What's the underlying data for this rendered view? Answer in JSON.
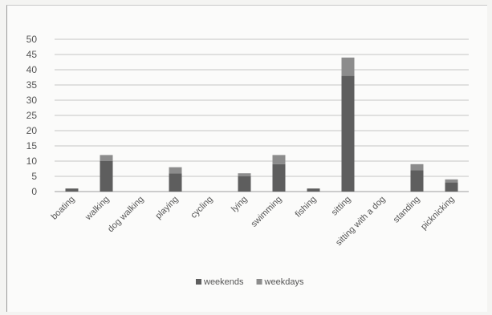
{
  "chart_data": {
    "type": "bar",
    "stacked": true,
    "categories": [
      "boating",
      "walking",
      "dog walking",
      "playing",
      "cycling",
      "lying",
      "swimming",
      "fishing",
      "sitting",
      "sitting with a dog",
      "standing",
      "picknicking"
    ],
    "series": [
      {
        "name": "weekends",
        "values": [
          1,
          10,
          0,
          6,
          0,
          5,
          9,
          1,
          38,
          0,
          7,
          3
        ],
        "color": "#5e5e5e"
      },
      {
        "name": "weekdays",
        "values": [
          0,
          2,
          0,
          2,
          0,
          1,
          3,
          0,
          6,
          0,
          2,
          1
        ],
        "color": "#8c8c8c"
      }
    ],
    "title": "",
    "xlabel": "",
    "ylabel": "",
    "ylim": [
      0,
      50
    ],
    "yticks": [
      0,
      5,
      10,
      15,
      20,
      25,
      30,
      35,
      40,
      45,
      50
    ],
    "grid": true,
    "legend": "bottom"
  }
}
